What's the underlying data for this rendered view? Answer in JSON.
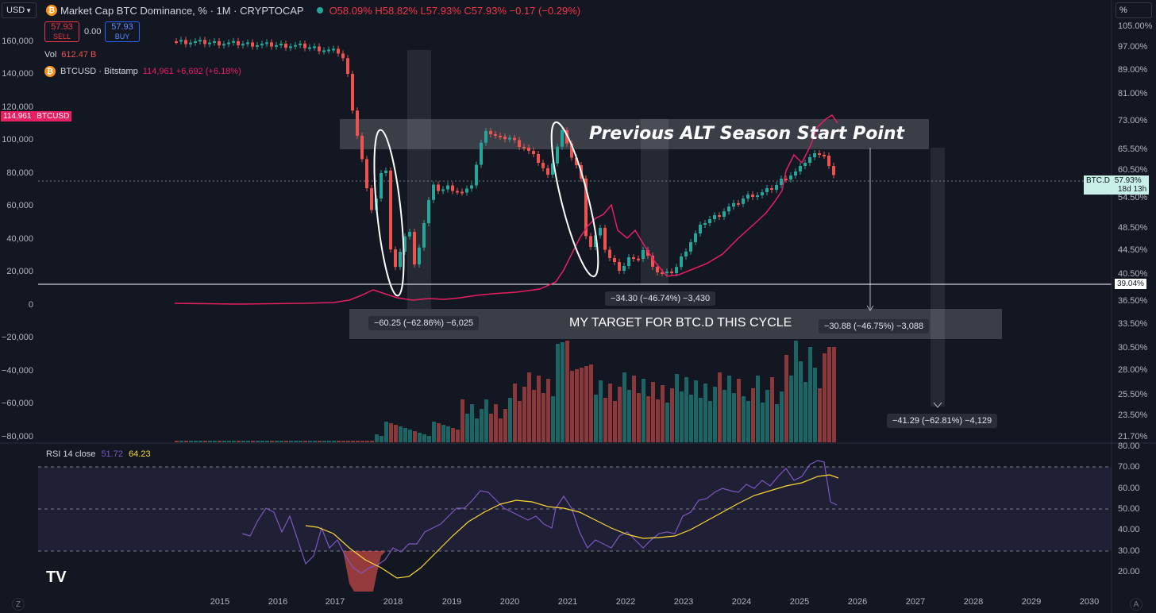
{
  "header": {
    "currency": "USD",
    "title": "Market Cap BTC Dominance, % · 1M · CRYPTOCAP",
    "ohlc": "O58.09% H58.82% L57.93% C57.93% −0.17 (−0.29%)",
    "scale_mode": "%"
  },
  "trade": {
    "sell_price": "57.93",
    "sell_label": "SELL",
    "spread": "0.00",
    "buy_price": "57.93",
    "buy_label": "BUY"
  },
  "legend": {
    "vol_label": "Vol",
    "vol_value": "612.47 B",
    "btcusd_label": "BTCUSD · Bitstamp",
    "btcusd_value": "114,961 +6,692 (+6.18%)"
  },
  "left_axis": [
    "160,000",
    "140,000",
    "120,000",
    "100,000",
    "80,000",
    "60,000",
    "40,000",
    "20,000",
    "0",
    "−20,000",
    "−40,000",
    "−60,000",
    "−80,000"
  ],
  "btcusd_tag": {
    "price": "114,961",
    "name": "BTCUSD"
  },
  "right_axis": [
    "105.00%",
    "97.00%",
    "89.00%",
    "81.00%",
    "73.00%",
    "65.50%",
    "60.50%",
    "54.50%",
    "48.50%",
    "44.50%",
    "40.50%",
    "36.50%",
    "33.50%",
    "30.50%",
    "28.00%",
    "25.50%",
    "23.50%",
    "21.70%"
  ],
  "btcd_tag": {
    "name": "BTC.D",
    "value": "57.93%",
    "countdown": "18d 13h"
  },
  "line_tag": "39.04%",
  "annotations": {
    "prev_alt_season": "Previous ALT Season Start Point",
    "target": "MY TARGET FOR BTC.D THIS CYCLE",
    "m1": "−60.25 (−62.86%) −6,025",
    "m2": "−34.30 (−46.74%) −3,430",
    "m3": "−30.88 (−46.75%) −3,088",
    "m4": "−41.29 (−62.81%) −4,129"
  },
  "rsi": {
    "label": "RSI 14 close",
    "value1": "51.72",
    "value2": "64.23",
    "axis": [
      "80.00",
      "70.00",
      "60.00",
      "50.00",
      "40.00",
      "30.00",
      "20.00"
    ]
  },
  "time_axis": [
    "2015",
    "2016",
    "2017",
    "2018",
    "2019",
    "2020",
    "2021",
    "2022",
    "2023",
    "2024",
    "2025",
    "2026",
    "2027",
    "2028",
    "2029",
    "2030"
  ],
  "corner_left": "Z",
  "corner_right": "A",
  "logo": "TV",
  "colors": {
    "up": "#26a69a",
    "down": "#ef5350",
    "btcusd": "#e91e63",
    "rsi": "#7e57c2",
    "rsi_ma": "#fdd835",
    "background": "#131722"
  }
}
